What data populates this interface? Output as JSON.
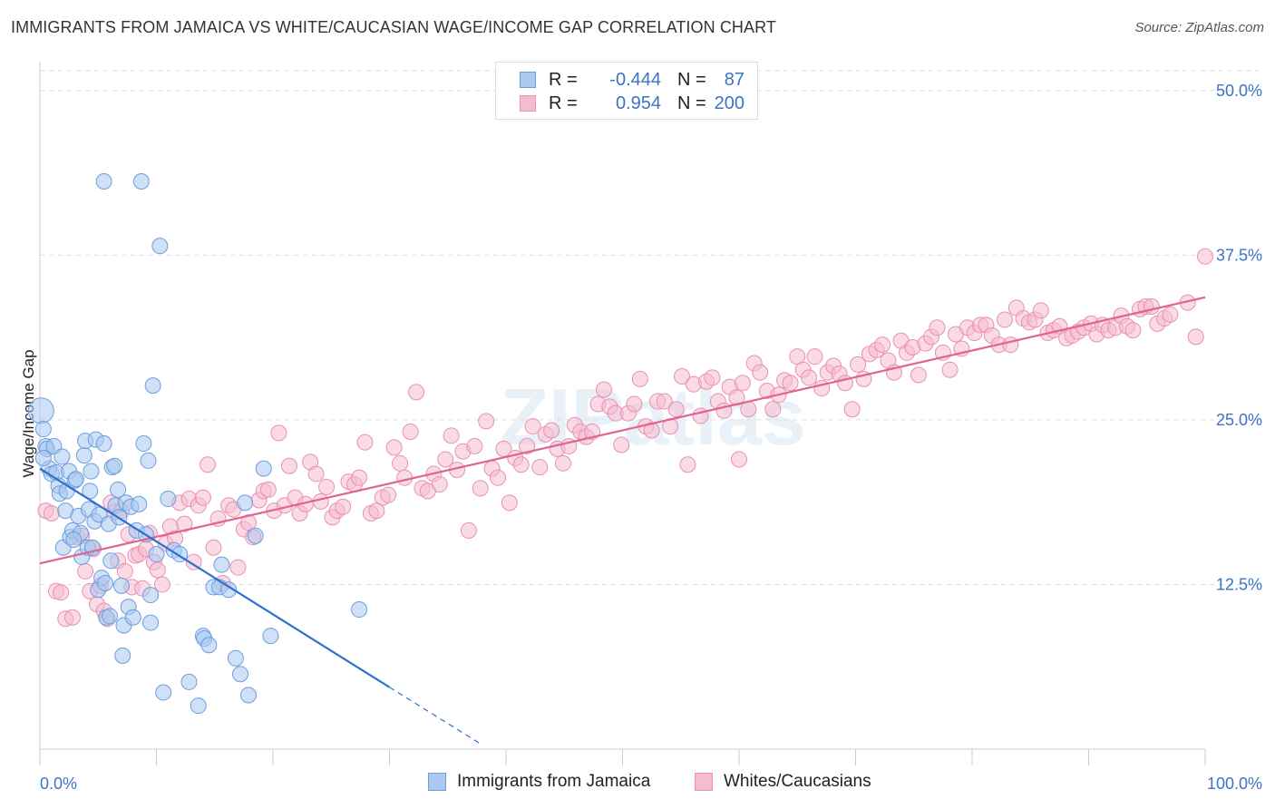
{
  "title": "IMMIGRANTS FROM JAMAICA VS WHITE/CAUCASIAN WAGE/INCOME GAP CORRELATION CHART",
  "source": "Source: ZipAtlas.com",
  "watermark": "ZIPatlas",
  "legend": {
    "rows": [
      {
        "r_label": "R =",
        "r_value": "-0.444",
        "n_label": "N =",
        "n_value": "87",
        "color": "#aac8f0",
        "border": "#6a9ee0"
      },
      {
        "r_label": "R =",
        "r_value": "0.954",
        "n_label": "N =",
        "n_value": "200",
        "color": "#f5bcd0",
        "border": "#e891b0"
      }
    ]
  },
  "chart_data": {
    "type": "scatter",
    "title": "IMMIGRANTS FROM JAMAICA VS WHITE/CAUCASIAN WAGE/INCOME GAP CORRELATION CHART",
    "xlabel": "",
    "ylabel": "Wage/Income Gap",
    "xlim": [
      0,
      100
    ],
    "ylim": [
      0,
      51.5
    ],
    "x_ticks": [
      "0.0%",
      "100.0%"
    ],
    "y_ticks": [
      {
        "value": 12.5,
        "label": "12.5%"
      },
      {
        "value": 25.0,
        "label": "25.0%"
      },
      {
        "value": 37.5,
        "label": "37.5%"
      },
      {
        "value": 50.0,
        "label": "50.0%"
      }
    ],
    "grid": true,
    "legend_position": "bottom",
    "series": [
      {
        "name": "Immigrants from Jamaica",
        "color": "#aac8f0",
        "stroke": "#6a9ee0",
        "trend_color": "#2e6fd0",
        "trend": {
          "x0": 0,
          "y0": 21.3,
          "x1": 30,
          "y1": 4.7,
          "dash_to_x": 38,
          "dash_to_y": 0.3
        },
        "points": [
          [
            0.1,
            25.7
          ],
          [
            0.3,
            24.3
          ],
          [
            0.5,
            23.0
          ],
          [
            0.6,
            22.8
          ],
          [
            0.8,
            21.3
          ],
          [
            1.0,
            20.9
          ],
          [
            1.2,
            23.0
          ],
          [
            1.4,
            21.0
          ],
          [
            1.6,
            20.0
          ],
          [
            1.7,
            19.4
          ],
          [
            1.9,
            22.2
          ],
          [
            2.0,
            15.3
          ],
          [
            2.2,
            18.1
          ],
          [
            2.3,
            19.6
          ],
          [
            2.5,
            21.1
          ],
          [
            2.6,
            16.1
          ],
          [
            2.8,
            16.6
          ],
          [
            3.0,
            20.4
          ],
          [
            3.1,
            20.5
          ],
          [
            3.3,
            17.7
          ],
          [
            3.5,
            16.4
          ],
          [
            3.6,
            14.6
          ],
          [
            3.8,
            22.3
          ],
          [
            3.9,
            23.4
          ],
          [
            4.1,
            15.3
          ],
          [
            4.2,
            18.2
          ],
          [
            4.3,
            19.6
          ],
          [
            4.4,
            21.1
          ],
          [
            4.5,
            15.3
          ],
          [
            4.7,
            17.3
          ],
          [
            4.8,
            23.5
          ],
          [
            5.0,
            12.1
          ],
          [
            5.1,
            17.8
          ],
          [
            5.3,
            13.0
          ],
          [
            5.5,
            23.2
          ],
          [
            5.6,
            12.6
          ],
          [
            5.7,
            10.0
          ],
          [
            5.9,
            17.1
          ],
          [
            6.0,
            10.1
          ],
          [
            6.2,
            21.4
          ],
          [
            6.4,
            21.5
          ],
          [
            6.5,
            18.5
          ],
          [
            6.7,
            19.7
          ],
          [
            6.8,
            17.6
          ],
          [
            7.0,
            12.4
          ],
          [
            7.1,
            7.1
          ],
          [
            7.2,
            9.4
          ],
          [
            7.4,
            18.7
          ],
          [
            7.6,
            10.8
          ],
          [
            7.8,
            18.4
          ],
          [
            8.0,
            10.0
          ],
          [
            8.3,
            16.6
          ],
          [
            8.5,
            18.6
          ],
          [
            8.7,
            43.1
          ],
          [
            8.9,
            23.2
          ],
          [
            9.1,
            16.3
          ],
          [
            9.3,
            21.9
          ],
          [
            9.5,
            11.7
          ],
          [
            9.5,
            9.6
          ],
          [
            9.7,
            27.6
          ],
          [
            10.0,
            14.8
          ],
          [
            10.3,
            38.2
          ],
          [
            10.6,
            4.3
          ],
          [
            11.0,
            19.0
          ],
          [
            11.5,
            15.1
          ],
          [
            12.0,
            14.8
          ],
          [
            12.8,
            5.1
          ],
          [
            13.6,
            3.3
          ],
          [
            14.0,
            8.6
          ],
          [
            14.1,
            8.4
          ],
          [
            14.5,
            7.9
          ],
          [
            14.9,
            12.3
          ],
          [
            15.4,
            12.3
          ],
          [
            15.6,
            14.0
          ],
          [
            16.2,
            12.1
          ],
          [
            16.8,
            6.9
          ],
          [
            17.2,
            5.7
          ],
          [
            17.6,
            18.7
          ],
          [
            17.9,
            4.1
          ],
          [
            18.5,
            16.2
          ],
          [
            19.2,
            21.3
          ],
          [
            19.8,
            8.6
          ],
          [
            27.4,
            10.6
          ],
          [
            5.5,
            43.1
          ],
          [
            0.3,
            22.1
          ],
          [
            2.9,
            15.9
          ],
          [
            6.1,
            14.3
          ]
        ]
      },
      {
        "name": "Whites/Caucasians",
        "color": "#f5bcd0",
        "stroke": "#e891b0",
        "trend_color": "#e0648f",
        "trend": {
          "x0": 0,
          "y0": 14.1,
          "x1": 100,
          "y1": 34.3
        },
        "points": [
          [
            0.5,
            18.1
          ],
          [
            1.0,
            17.9
          ],
          [
            1.4,
            12.0
          ],
          [
            1.8,
            11.9
          ],
          [
            2.2,
            9.9
          ],
          [
            2.8,
            10.0
          ],
          [
            3.2,
            16.1
          ],
          [
            3.6,
            16.2
          ],
          [
            3.9,
            13.5
          ],
          [
            4.3,
            12.0
          ],
          [
            4.6,
            15.2
          ],
          [
            4.9,
            11.0
          ],
          [
            5.2,
            12.4
          ],
          [
            5.5,
            10.5
          ],
          [
            5.8,
            9.9
          ],
          [
            6.1,
            18.7
          ],
          [
            6.4,
            18.0
          ],
          [
            6.7,
            14.3
          ],
          [
            7.0,
            18.1
          ],
          [
            7.3,
            13.5
          ],
          [
            7.6,
            16.3
          ],
          [
            7.9,
            12.3
          ],
          [
            8.2,
            14.7
          ],
          [
            8.5,
            14.8
          ],
          [
            8.8,
            12.2
          ],
          [
            9.1,
            15.2
          ],
          [
            9.4,
            16.4
          ],
          [
            9.8,
            14.2
          ],
          [
            10.1,
            13.6
          ],
          [
            10.5,
            12.5
          ],
          [
            10.8,
            15.6
          ],
          [
            11.2,
            16.9
          ],
          [
            11.6,
            16.0
          ],
          [
            12.0,
            18.7
          ],
          [
            12.4,
            17.1
          ],
          [
            12.8,
            19.0
          ],
          [
            13.2,
            14.2
          ],
          [
            13.6,
            18.5
          ],
          [
            14.0,
            19.1
          ],
          [
            14.4,
            21.6
          ],
          [
            14.9,
            15.3
          ],
          [
            15.3,
            17.5
          ],
          [
            15.7,
            12.6
          ],
          [
            16.2,
            18.5
          ],
          [
            16.6,
            18.2
          ],
          [
            17.0,
            13.8
          ],
          [
            17.5,
            16.7
          ],
          [
            17.9,
            17.2
          ],
          [
            18.3,
            16.1
          ],
          [
            18.8,
            18.9
          ],
          [
            19.2,
            19.6
          ],
          [
            19.6,
            19.7
          ],
          [
            20.1,
            18.1
          ],
          [
            20.5,
            24.0
          ],
          [
            21.0,
            18.5
          ],
          [
            21.4,
            21.5
          ],
          [
            21.9,
            19.1
          ],
          [
            22.3,
            17.9
          ],
          [
            22.8,
            18.6
          ],
          [
            23.2,
            21.8
          ],
          [
            23.7,
            20.9
          ],
          [
            24.1,
            18.8
          ],
          [
            24.6,
            19.9
          ],
          [
            25.1,
            17.6
          ],
          [
            25.5,
            18.1
          ],
          [
            26.0,
            18.4
          ],
          [
            26.5,
            20.3
          ],
          [
            27.0,
            20.1
          ],
          [
            27.4,
            20.6
          ],
          [
            27.9,
            23.3
          ],
          [
            28.4,
            17.9
          ],
          [
            28.9,
            18.1
          ],
          [
            29.4,
            19.1
          ],
          [
            29.9,
            19.3
          ],
          [
            30.4,
            22.9
          ],
          [
            30.9,
            21.7
          ],
          [
            31.3,
            20.6
          ],
          [
            31.8,
            24.1
          ],
          [
            32.3,
            27.1
          ],
          [
            32.8,
            19.8
          ],
          [
            33.3,
            19.6
          ],
          [
            33.8,
            20.9
          ],
          [
            34.3,
            20.1
          ],
          [
            34.8,
            22.0
          ],
          [
            35.3,
            23.8
          ],
          [
            35.8,
            21.2
          ],
          [
            36.3,
            22.6
          ],
          [
            36.8,
            16.6
          ],
          [
            37.3,
            23.0
          ],
          [
            37.8,
            19.8
          ],
          [
            38.3,
            24.9
          ],
          [
            38.8,
            21.3
          ],
          [
            39.3,
            20.6
          ],
          [
            39.8,
            22.8
          ],
          [
            40.3,
            18.7
          ],
          [
            40.8,
            22.1
          ],
          [
            41.3,
            21.6
          ],
          [
            41.8,
            23.0
          ],
          [
            42.3,
            24.5
          ],
          [
            42.9,
            21.4
          ],
          [
            43.4,
            23.9
          ],
          [
            43.9,
            24.2
          ],
          [
            44.4,
            22.8
          ],
          [
            44.9,
            21.7
          ],
          [
            45.4,
            23.0
          ],
          [
            45.9,
            24.6
          ],
          [
            46.4,
            24.1
          ],
          [
            46.9,
            23.7
          ],
          [
            47.4,
            24.1
          ],
          [
            47.9,
            26.2
          ],
          [
            48.4,
            27.3
          ],
          [
            48.9,
            26.0
          ],
          [
            49.4,
            25.5
          ],
          [
            49.9,
            23.1
          ],
          [
            50.5,
            25.5
          ],
          [
            51.0,
            26.2
          ],
          [
            51.5,
            28.1
          ],
          [
            52.0,
            24.5
          ],
          [
            52.5,
            24.2
          ],
          [
            53.0,
            26.4
          ],
          [
            53.6,
            26.4
          ],
          [
            54.1,
            24.5
          ],
          [
            54.6,
            25.8
          ],
          [
            55.1,
            28.3
          ],
          [
            55.6,
            21.6
          ],
          [
            56.1,
            27.7
          ],
          [
            56.7,
            25.3
          ],
          [
            57.2,
            27.9
          ],
          [
            57.7,
            28.2
          ],
          [
            58.2,
            26.4
          ],
          [
            58.7,
            25.7
          ],
          [
            59.2,
            27.5
          ],
          [
            59.8,
            26.7
          ],
          [
            60.3,
            27.8
          ],
          [
            60.8,
            25.8
          ],
          [
            61.3,
            29.3
          ],
          [
            61.8,
            28.6
          ],
          [
            62.4,
            27.2
          ],
          [
            62.9,
            25.8
          ],
          [
            63.4,
            26.9
          ],
          [
            63.9,
            28.0
          ],
          [
            64.4,
            27.8
          ],
          [
            65.0,
            29.8
          ],
          [
            65.5,
            28.8
          ],
          [
            66.0,
            28.2
          ],
          [
            66.5,
            29.8
          ],
          [
            67.1,
            27.4
          ],
          [
            67.6,
            28.6
          ],
          [
            68.1,
            29.1
          ],
          [
            68.6,
            28.5
          ],
          [
            69.1,
            27.8
          ],
          [
            69.7,
            25.8
          ],
          [
            70.2,
            29.2
          ],
          [
            70.7,
            28.1
          ],
          [
            71.2,
            30.0
          ],
          [
            71.8,
            30.3
          ],
          [
            72.3,
            30.7
          ],
          [
            72.8,
            29.5
          ],
          [
            73.3,
            28.6
          ],
          [
            73.9,
            31.0
          ],
          [
            74.4,
            30.1
          ],
          [
            74.9,
            30.5
          ],
          [
            75.4,
            28.4
          ],
          [
            76.0,
            30.8
          ],
          [
            76.5,
            31.3
          ],
          [
            77.0,
            32.0
          ],
          [
            77.5,
            30.1
          ],
          [
            78.1,
            28.8
          ],
          [
            78.6,
            31.5
          ],
          [
            79.1,
            30.4
          ],
          [
            79.6,
            32.0
          ],
          [
            80.2,
            31.6
          ],
          [
            80.7,
            32.2
          ],
          [
            81.2,
            32.2
          ],
          [
            81.7,
            31.4
          ],
          [
            82.3,
            30.7
          ],
          [
            82.8,
            32.6
          ],
          [
            83.3,
            30.7
          ],
          [
            83.8,
            33.5
          ],
          [
            84.4,
            32.7
          ],
          [
            84.9,
            32.4
          ],
          [
            85.4,
            32.6
          ],
          [
            85.9,
            33.3
          ],
          [
            86.5,
            31.6
          ],
          [
            87.0,
            31.8
          ],
          [
            87.5,
            32.1
          ],
          [
            88.1,
            31.2
          ],
          [
            88.6,
            31.4
          ],
          [
            89.1,
            31.7
          ],
          [
            89.6,
            32.0
          ],
          [
            90.2,
            32.3
          ],
          [
            90.7,
            31.5
          ],
          [
            91.2,
            32.2
          ],
          [
            91.7,
            31.8
          ],
          [
            92.3,
            32.0
          ],
          [
            92.8,
            32.9
          ],
          [
            93.3,
            32.1
          ],
          [
            93.8,
            31.8
          ],
          [
            94.4,
            33.4
          ],
          [
            94.9,
            33.6
          ],
          [
            95.4,
            33.6
          ],
          [
            95.9,
            32.3
          ],
          [
            96.5,
            32.7
          ],
          [
            100.0,
            37.4
          ],
          [
            99.2,
            31.3
          ],
          [
            97.0,
            33.0
          ],
          [
            98.5,
            33.9
          ],
          [
            60.0,
            22.0
          ]
        ]
      }
    ]
  },
  "bottom_legend": [
    {
      "label": "Immigrants from Jamaica",
      "color": "#aac8f0",
      "border": "#6a9ee0"
    },
    {
      "label": "Whites/Caucasians",
      "color": "#f5bcd0",
      "border": "#e891b0"
    }
  ]
}
